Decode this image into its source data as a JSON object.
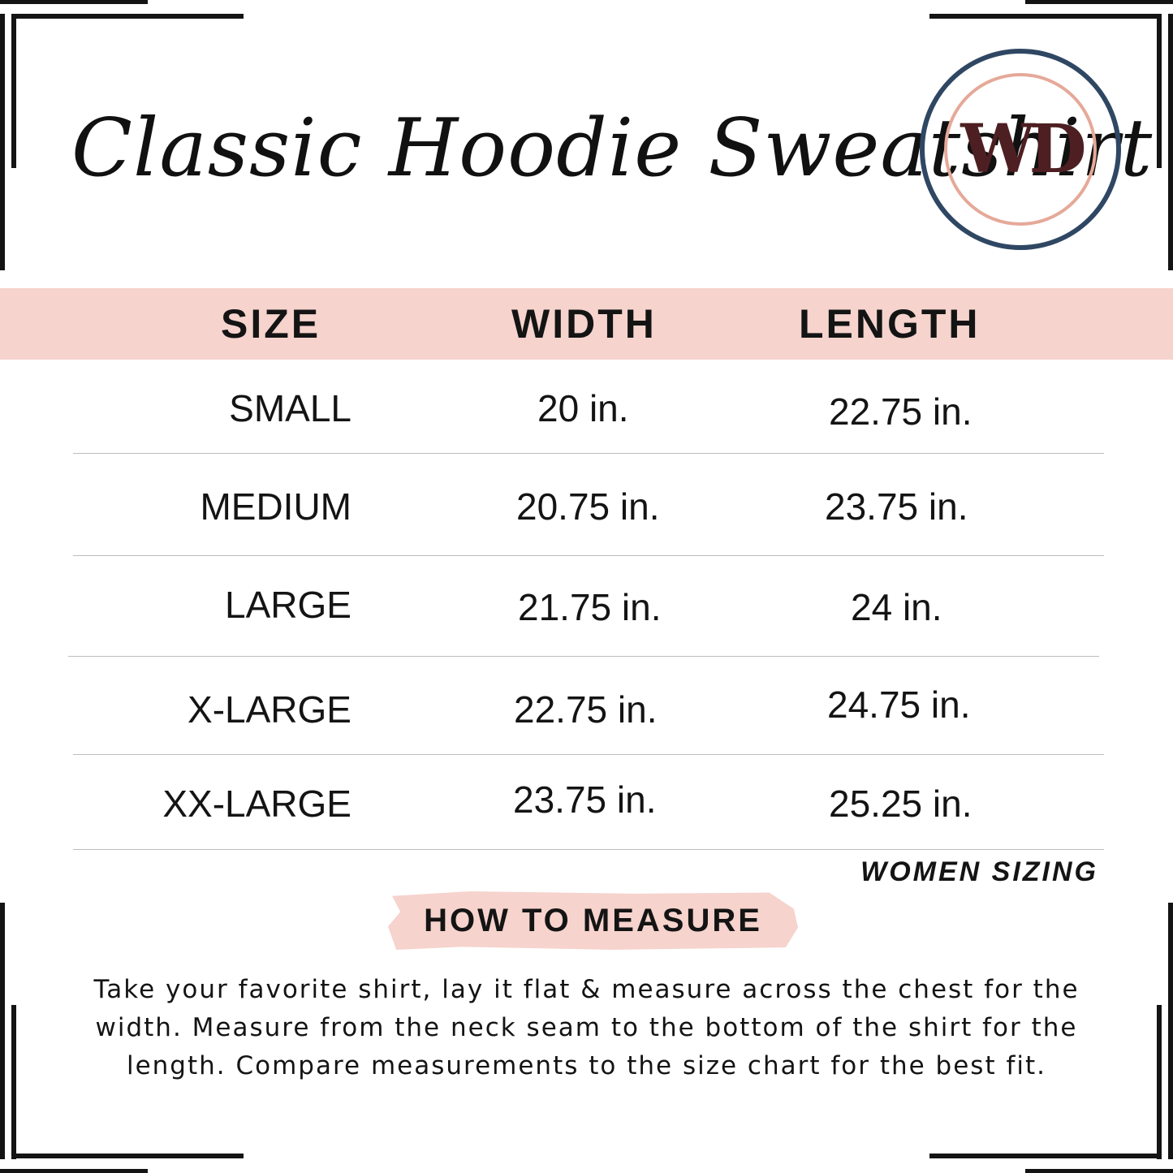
{
  "title": "Classic Hoodie Sweatshirt",
  "logo": {
    "text": "WD",
    "ring_outer_color": "#2f4763",
    "ring_inner_color": "#e5a999",
    "text_color": "#4e1f22"
  },
  "colors": {
    "band": "#f6d3cd",
    "text": "#141414",
    "divider": "#bdbdbd"
  },
  "table": {
    "headers": {
      "size": "SIZE",
      "width": "WIDTH",
      "length": "LENGTH"
    },
    "rows": [
      {
        "size": "SMALL",
        "width": "20 in.",
        "length": "22.75 in."
      },
      {
        "size": "MEDIUM",
        "width": "20.75 in.",
        "length": "23.75 in."
      },
      {
        "size": "LARGE",
        "width": "21.75 in.",
        "length": "24 in."
      },
      {
        "size": "X-LARGE",
        "width": "22.75 in.",
        "length": "24.75 in."
      },
      {
        "size": "XX-LARGE",
        "width": "23.75 in.",
        "length": "25.25 in."
      }
    ]
  },
  "note": "WOMEN SIZING",
  "measure": {
    "label": "HOW TO MEASURE",
    "instructions": "Take your favorite shirt, lay it flat & measure across the chest for the width. Measure from the neck seam to the bottom of the shirt for the length. Compare measurements to the size chart for the best fit."
  }
}
